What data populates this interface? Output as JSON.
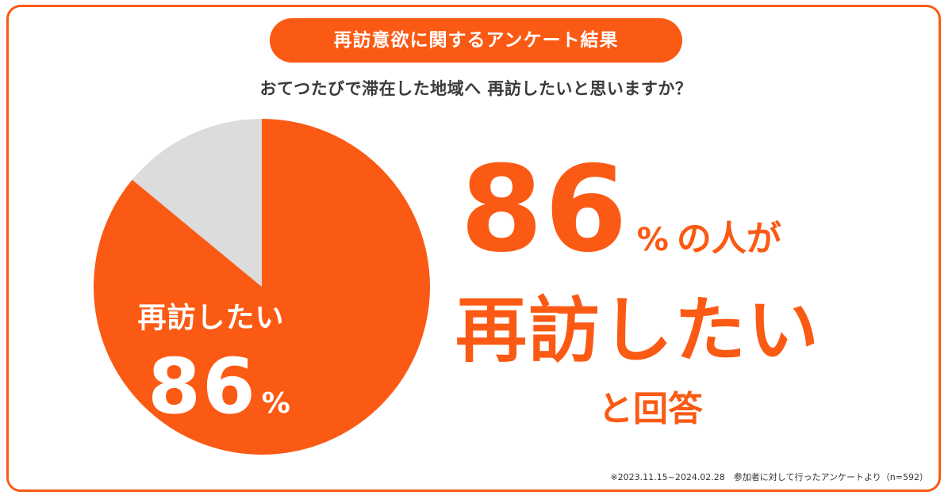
{
  "header": {
    "title": "再訪意欲に関するアンケート結果",
    "question": "おてつたびで滞在した地域へ 再訪したいと思いますか？"
  },
  "pie_label": {
    "text": "再訪したい",
    "value": "86",
    "unit": "%"
  },
  "headline": {
    "value": "86",
    "unit": "%",
    "suffix": "の人が",
    "main": "再訪したい",
    "tail": "と回答"
  },
  "footnote": "※2023.11.15~2024.02.28　参加者に対して行ったアンケートより（n=592）",
  "colors": {
    "accent": "#fb5a14",
    "remainder": "#dcdcdc",
    "question_text": "#3a3a3a"
  },
  "chart_data": {
    "type": "pie",
    "title": "",
    "slices": [
      {
        "label": "再訪したい",
        "value": 86,
        "color": "#fb5a14"
      },
      {
        "label": "",
        "value": 14,
        "color": "#dcdcdc"
      }
    ]
  }
}
